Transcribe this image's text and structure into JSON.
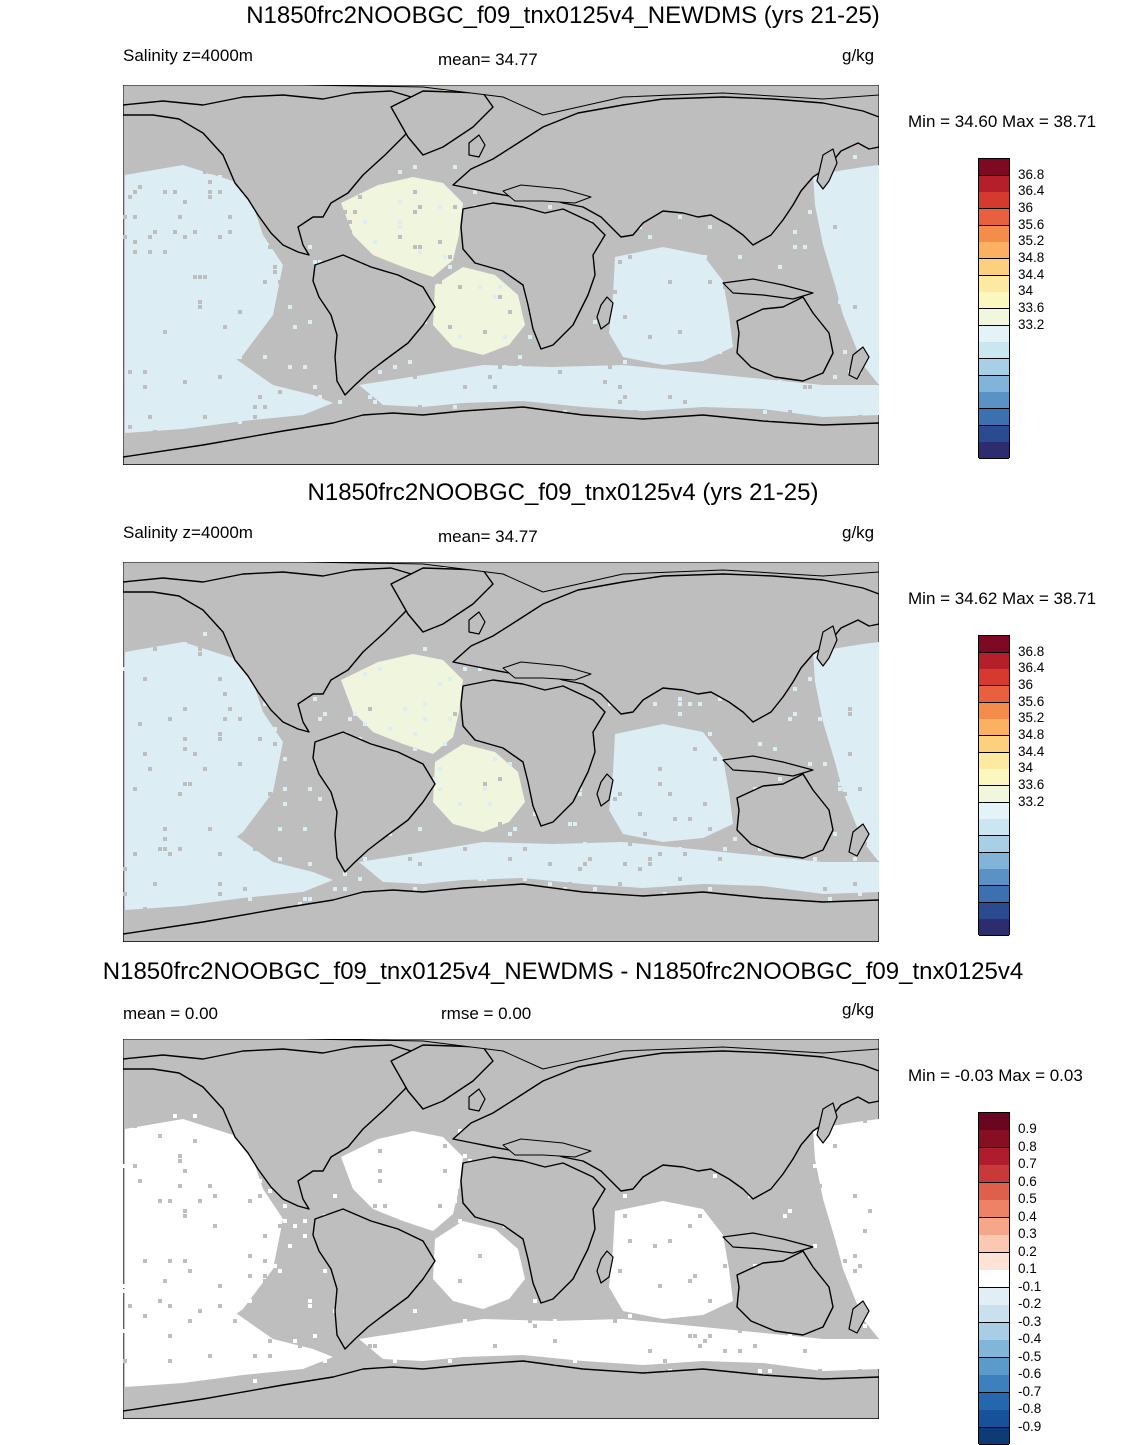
{
  "colors": {
    "land": "#bebebe",
    "coast": "#000000",
    "abs_scale": [
      "#2c2c6e",
      "#2a4b8f",
      "#3d70b0",
      "#5b92c6",
      "#82b3d8",
      "#a7d0e6",
      "#c9e6f1",
      "#e4f3f7",
      "#f0f7dc",
      "#fbf7bf",
      "#fde99f",
      "#fdd07d",
      "#fbb062",
      "#f48c4c",
      "#e8603d",
      "#d63a2f",
      "#b51f2a",
      "#7d0a22"
    ],
    "diff_scale": [
      "#0c3b75",
      "#17519a",
      "#2567ae",
      "#3c80bd",
      "#5b9bcb",
      "#82b6d9",
      "#a8cde5",
      "#c9e1ef",
      "#e2eef6",
      "#ffffff",
      "#fde3d6",
      "#fbc8b2",
      "#f6a789",
      "#ed8266",
      "#df5f4d",
      "#c9393a",
      "#ae1c2d",
      "#870f24",
      "#6a0620"
    ]
  },
  "panels": [
    {
      "title": "N1850frc2NOOBGC_f09_tnx0125v4_NEWDMS (yrs 21-25)",
      "left_label": "Salinity z=4000m",
      "center_label": "mean=  34.77",
      "units": "g/kg",
      "minmax": "Min =  34.60 Max =  38.71",
      "colorbar_ticks": [
        "36.8",
        "36.4",
        "36",
        "35.6",
        "35.2",
        "34.8",
        "34.4",
        "34",
        "33.6",
        "33.2"
      ],
      "scale": "abs"
    },
    {
      "title": "N1850frc2NOOBGC_f09_tnx0125v4 (yrs 21-25)",
      "left_label": "Salinity z=4000m",
      "center_label": "mean=  34.77",
      "units": "g/kg",
      "minmax": "Min =  34.62 Max =  38.71",
      "colorbar_ticks": [
        "36.8",
        "36.4",
        "36",
        "35.6",
        "35.2",
        "34.8",
        "34.4",
        "34",
        "33.6",
        "33.2"
      ],
      "scale": "abs"
    },
    {
      "title": "N1850frc2NOOBGC_f09_tnx0125v4_NEWDMS - N1850frc2NOOBGC_f09_tnx0125v4",
      "left_label": "mean =   0.00",
      "center_label": "rmse =   0.00",
      "units": "g/kg",
      "minmax": "Min =  -0.03 Max =   0.03",
      "colorbar_ticks": [
        "0.9",
        "0.8",
        "0.7",
        "0.6",
        "0.5",
        "0.4",
        "0.3",
        "0.2",
        "0.1",
        "-0.1",
        "-0.2",
        "-0.3",
        "-0.4",
        "-0.5",
        "-0.6",
        "-0.7",
        "-0.8",
        "-0.9"
      ],
      "scale": "diff"
    }
  ]
}
